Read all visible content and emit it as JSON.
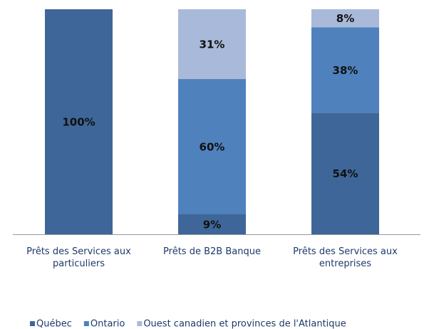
{
  "chart_data": {
    "type": "stacked_bar",
    "categories": [
      "Prêts des Services aux particuliers",
      "Prêts de B2B Banque",
      "Prêts des Services aux entreprises"
    ],
    "series": [
      {
        "name": "Québec",
        "color": "#3e6699",
        "values": [
          100,
          9,
          54
        ],
        "value_labels": [
          "100%",
          "9%",
          "54%"
        ]
      },
      {
        "name": "Ontario",
        "color": "#4f81bd",
        "values": [
          0,
          60,
          38
        ],
        "value_labels": [
          null,
          "60%",
          "38%"
        ]
      },
      {
        "name": "Ouest canadien et provinces de l'Atlantique",
        "color": "#a9b9d9",
        "values": [
          0,
          31,
          8
        ],
        "value_labels": [
          null,
          "31%",
          "8%"
        ]
      }
    ],
    "ylim": [
      0,
      100
    ],
    "legend": "bottom"
  }
}
